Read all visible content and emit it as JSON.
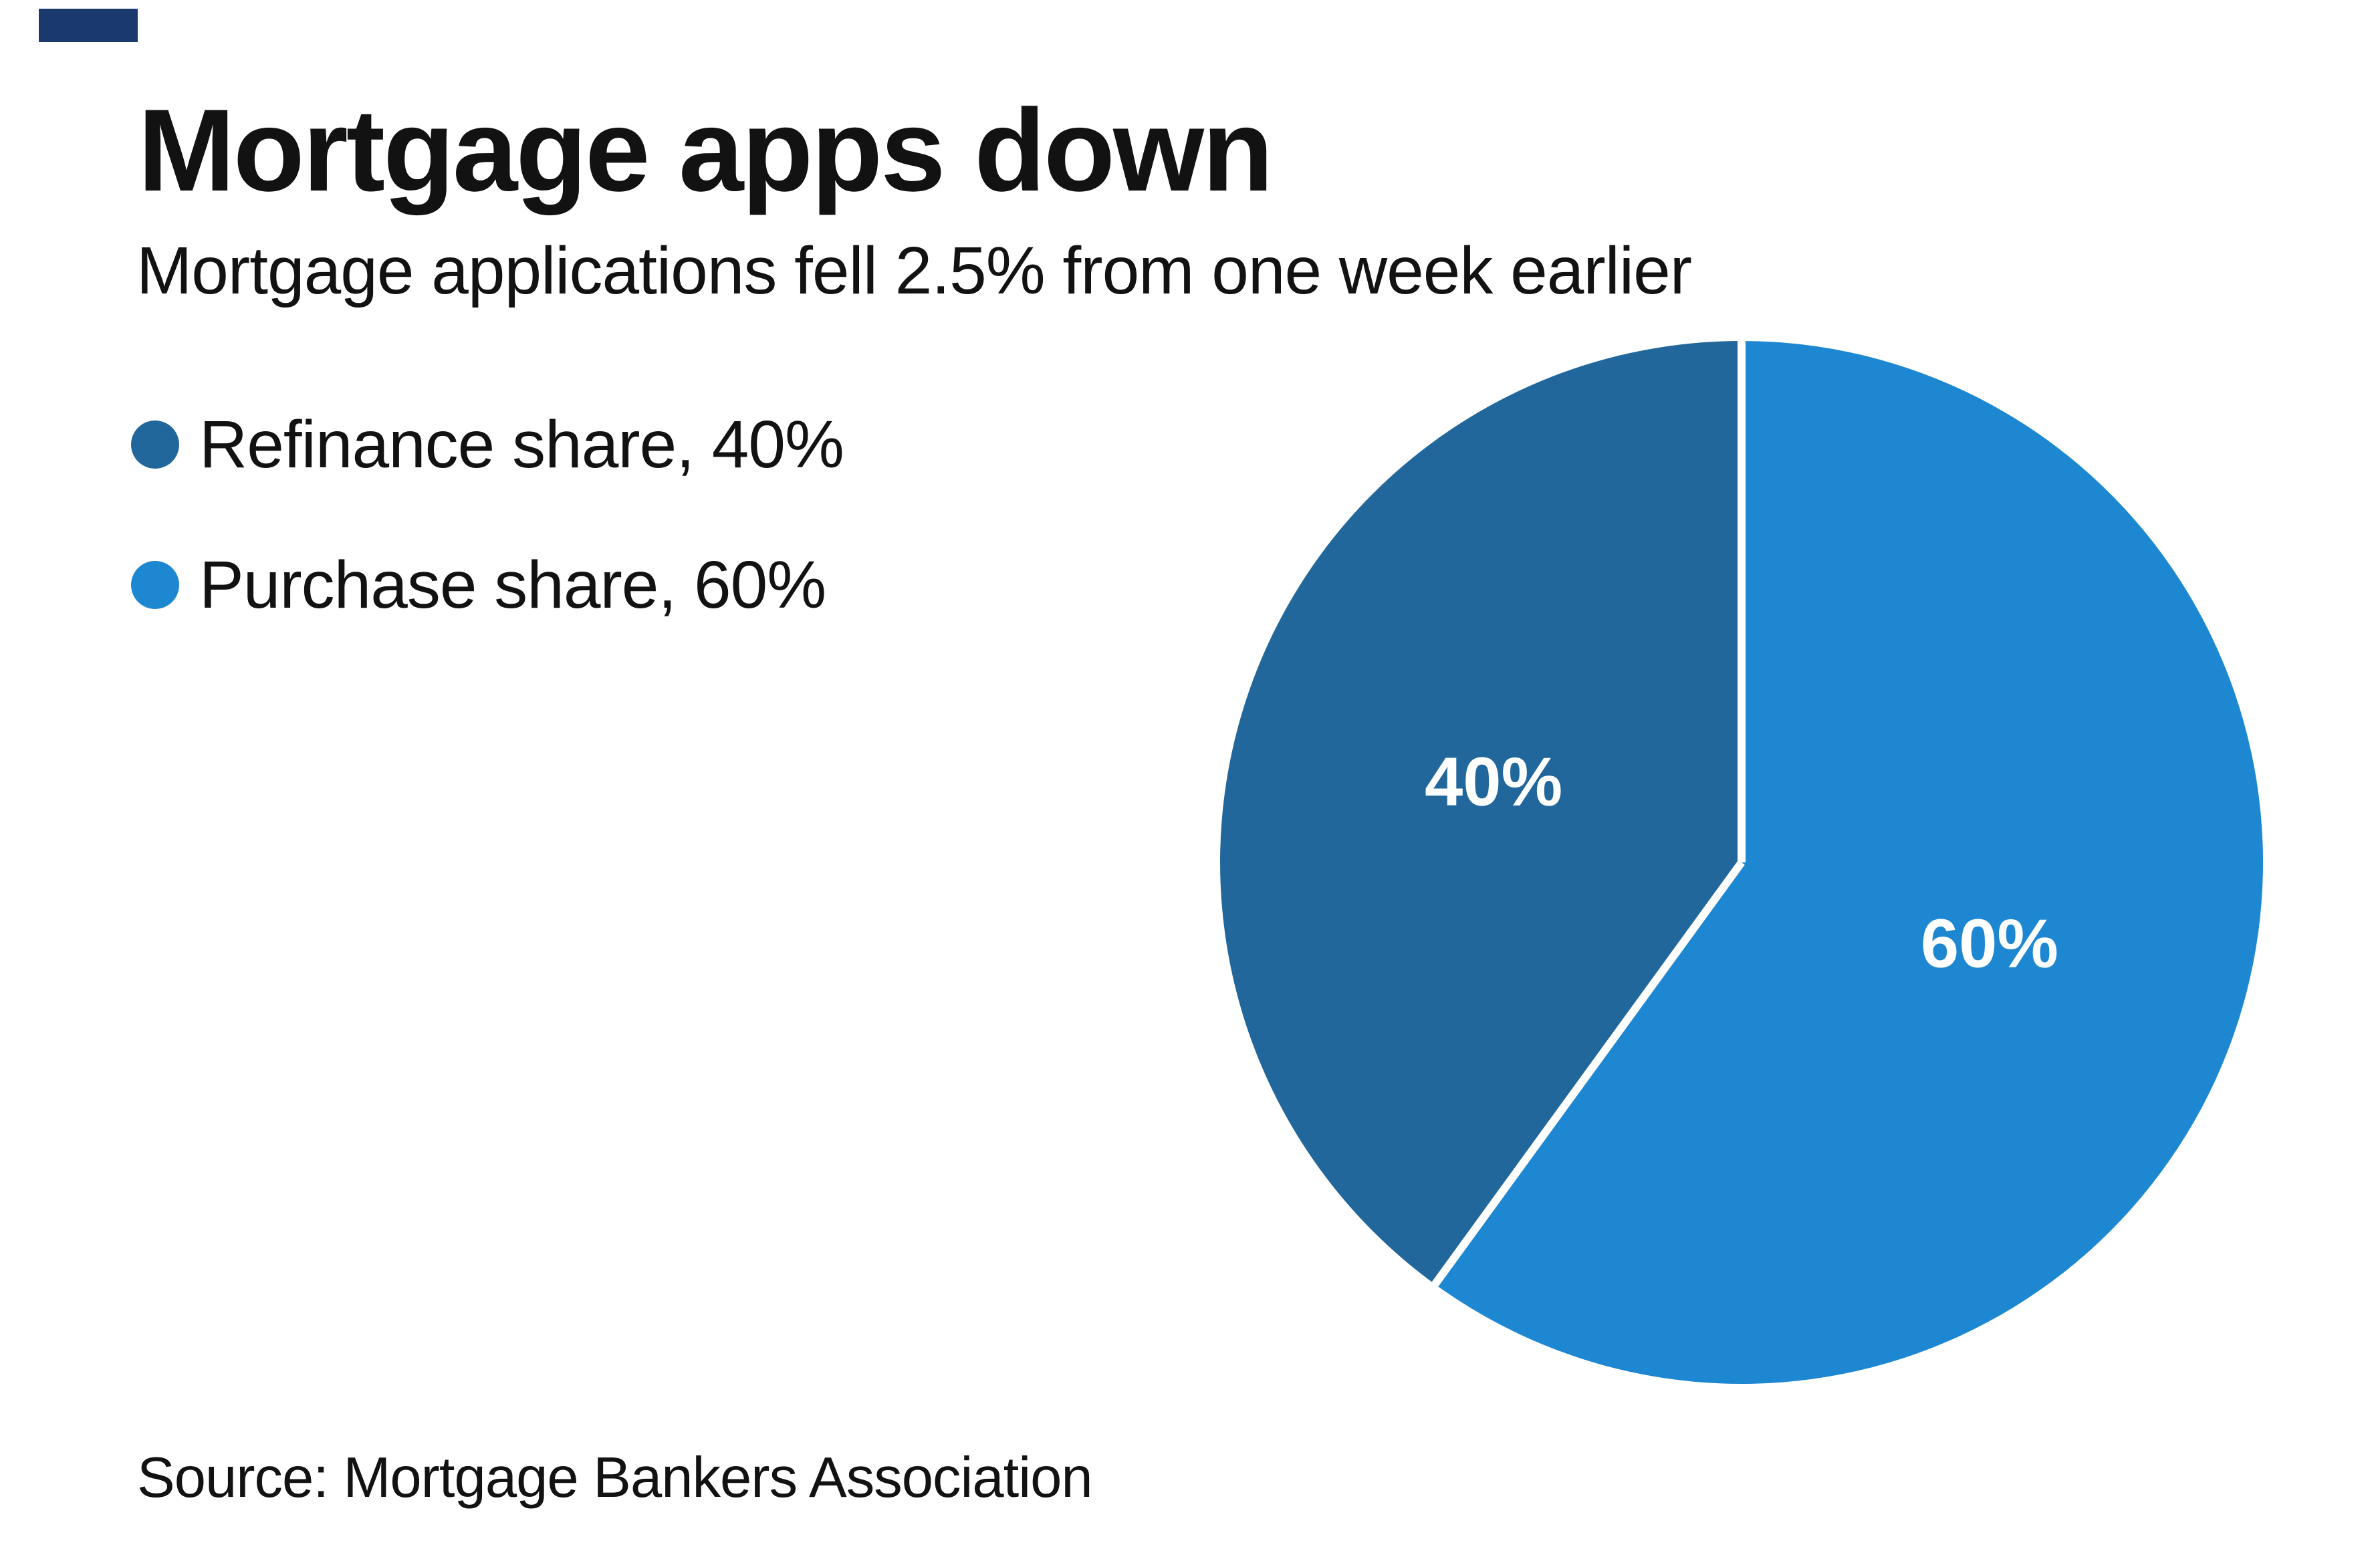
{
  "header": {
    "title": "Mortgage apps down",
    "subtitle": "Mortgage applications fell 2.5% from one week earlier"
  },
  "legend": {
    "items": [
      {
        "label": "Refinance share, 40%",
        "color": "#21679B"
      },
      {
        "label": "Purchase share, 60%",
        "color": "#1E87D2"
      }
    ]
  },
  "source_note": "Source: Mortgage Bankers Association",
  "branding": {
    "corner_mark_color": "#1A3A6E"
  },
  "chart_data": {
    "type": "pie",
    "title": "Mortgage apps down",
    "subtitle": "Mortgage applications fell 2.5% from one week earlier",
    "series": [
      {
        "name": "Refinance share",
        "value": 40,
        "label": "40%",
        "color": "#21679B"
      },
      {
        "name": "Purchase share",
        "value": 60,
        "label": "60%",
        "color": "#1E87D2"
      }
    ],
    "order_clockwise_from_top": [
      "Purchase share",
      "Refinance share"
    ],
    "start_angle_deg": 0,
    "slice_label_color": "#FFFFFF",
    "slice_label_radius_fraction": 0.5,
    "divider_color": "#FFFFFF",
    "divider_width": 12,
    "legend_position": "upper-left",
    "background": "#FFFFFF",
    "source": "Source: Mortgage Bankers Association"
  }
}
